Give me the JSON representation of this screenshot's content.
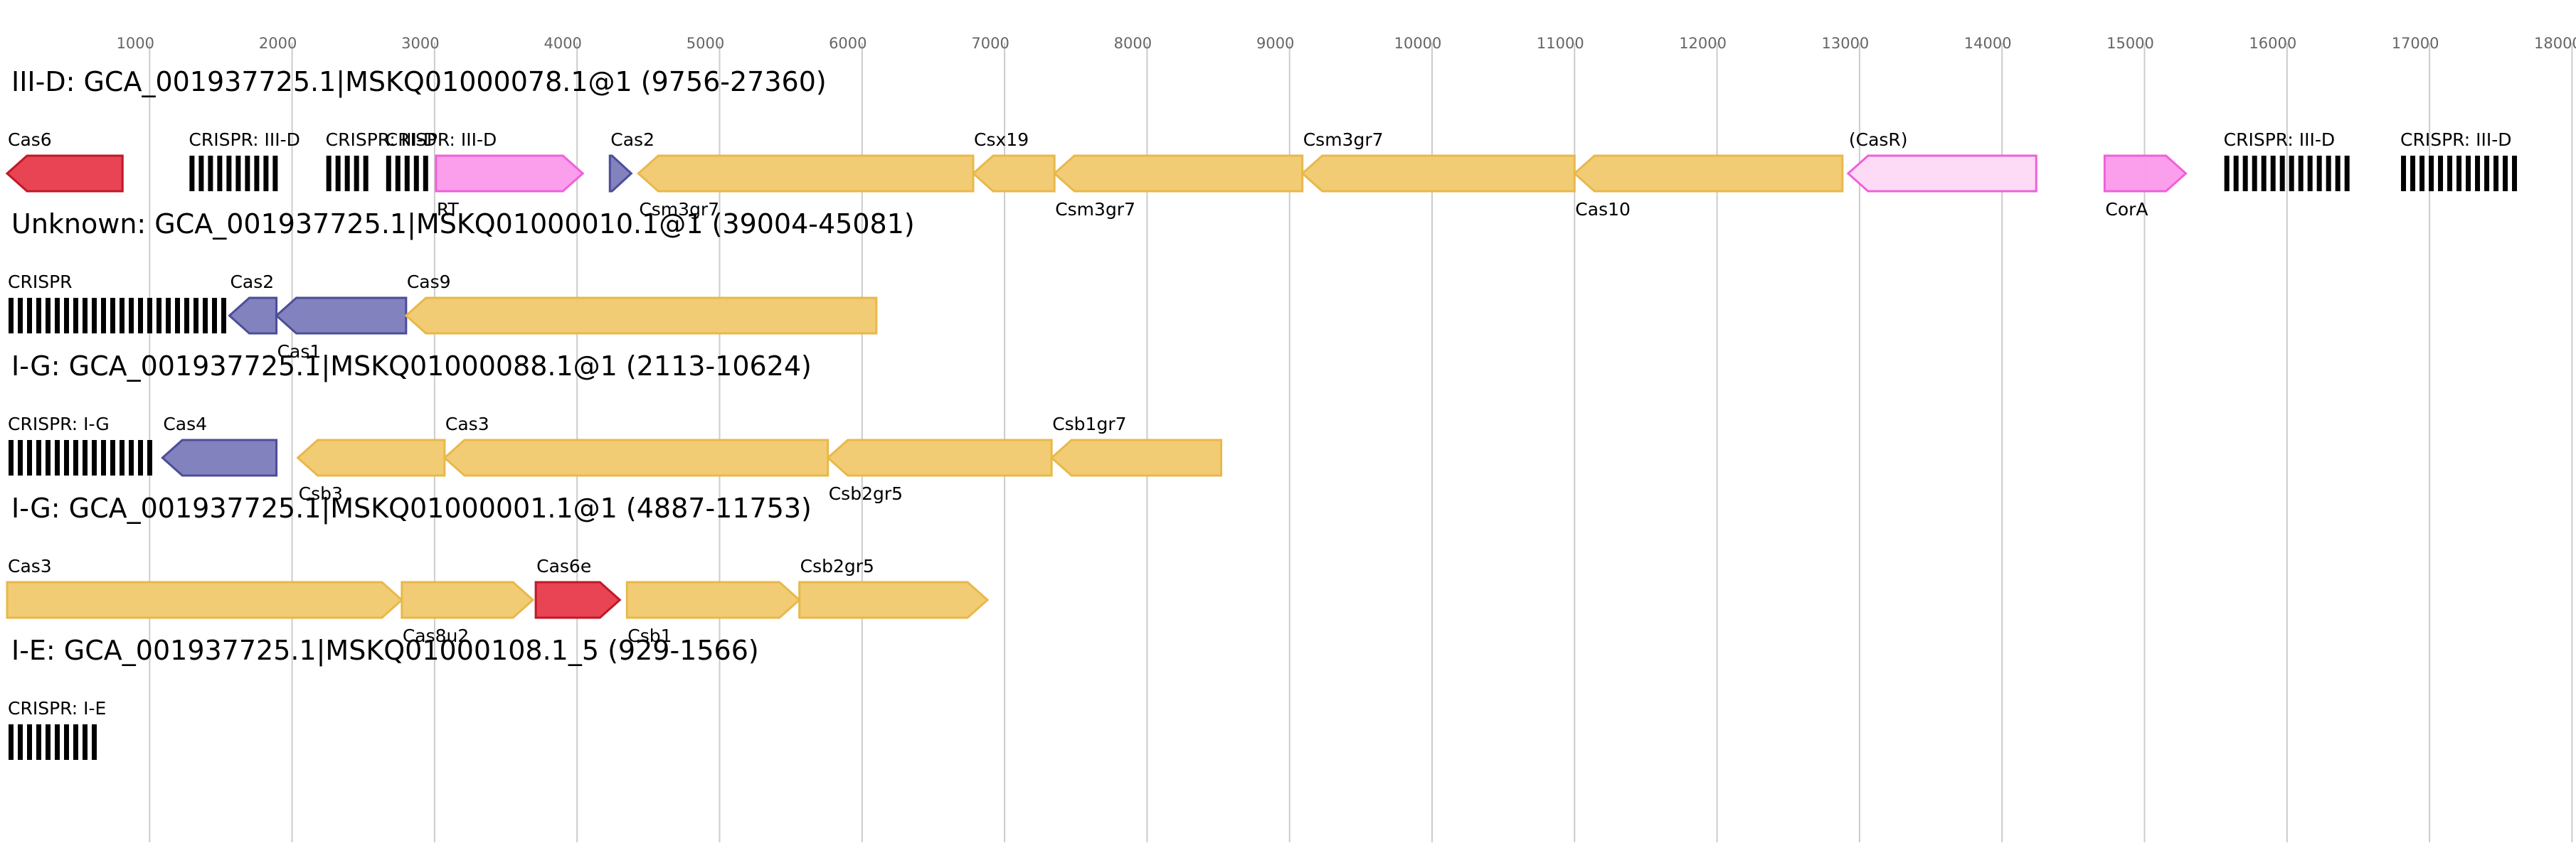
{
  "axis": {
    "ticks": [
      "1000",
      "2000",
      "3000",
      "4000",
      "5000",
      "6000",
      "7000",
      "8000",
      "9000",
      "10000",
      "11000",
      "12000",
      "13000",
      "14000",
      "15000",
      "16000",
      "17000",
      "18000"
    ]
  },
  "colors": {
    "cas_effector": "#f2cb71",
    "cas_effector_stroke": "#e8b84a",
    "cas6": "#e84050",
    "cas6_stroke": "#c01828",
    "adaptation": "#7f7fbd",
    "adaptation_stroke": "#4d4d99",
    "accessory": "#fb9cec",
    "accessory_stroke": "#f060d8",
    "accessory_faint": "#fddaf6",
    "crispr": "#000000"
  },
  "tracks": [
    {
      "title": "III-D: GCA_001937725.1|MSKQ01000078.1@1 (9756-27360)",
      "features": [
        {
          "label": "Cas6",
          "label_pos": "above",
          "kind": "arrow",
          "dir": "left",
          "start": 0,
          "end": 810,
          "color": "cas6"
        },
        {
          "label": "CRISPR: III-D",
          "label_pos": "above",
          "kind": "crispr",
          "start": 1270,
          "end": 1900
        },
        {
          "label": "CRISPR: III-D",
          "label_pos": "above",
          "kind": "crispr",
          "start": 2230,
          "end": 2560
        },
        {
          "label": "CRISPR: III-D",
          "label_pos": "above",
          "kind": "crispr",
          "start": 2650,
          "end": 2980
        },
        {
          "label": "RT",
          "label_pos": "below",
          "kind": "arrow",
          "dir": "right",
          "start": 3010,
          "end": 4040,
          "color": "accessory"
        },
        {
          "label": "Cas2",
          "label_pos": "above",
          "kind": "arrow",
          "dir": "right",
          "start": 4230,
          "end": 4380,
          "color": "adaptation"
        },
        {
          "label": "Csm3gr7",
          "label_pos": "below",
          "kind": "arrow",
          "dir": "left",
          "start": 4430,
          "end": 6780,
          "color": "cas_effector"
        },
        {
          "label": "Csx19",
          "label_pos": "above",
          "kind": "arrow",
          "dir": "left",
          "start": 6780,
          "end": 7350,
          "color": "cas_effector"
        },
        {
          "label": "Csm3gr7",
          "label_pos": "below",
          "kind": "arrow",
          "dir": "left",
          "start": 7350,
          "end": 9090,
          "color": "cas_effector"
        },
        {
          "label": "Csm3gr7",
          "label_pos": "above",
          "kind": "arrow",
          "dir": "left",
          "start": 9090,
          "end": 11000,
          "color": "cas_effector"
        },
        {
          "label": "Cas10",
          "label_pos": "below",
          "kind": "arrow",
          "dir": "left",
          "start": 11000,
          "end": 12880,
          "color": "cas_effector"
        },
        {
          "label": "(CasR)",
          "label_pos": "above",
          "kind": "arrow",
          "dir": "left",
          "start": 12920,
          "end": 14240,
          "color": "accessory_faint"
        },
        {
          "label": "CorA",
          "label_pos": "below",
          "kind": "arrow",
          "dir": "right",
          "start": 14720,
          "end": 15290,
          "color": "accessory"
        },
        {
          "label": "CRISPR: III-D",
          "label_pos": "above",
          "kind": "crispr",
          "start": 15550,
          "end": 16460
        },
        {
          "label": "CRISPR: III-D",
          "label_pos": "above",
          "kind": "crispr",
          "start": 16790,
          "end": 17640
        }
      ]
    },
    {
      "title": "Unknown: GCA_001937725.1|MSKQ01000010.1@1 (39004-45081)",
      "features": [
        {
          "label": "CRISPR",
          "label_pos": "above",
          "kind": "crispr",
          "start": 0,
          "end": 1520
        },
        {
          "label": "Cas2",
          "label_pos": "above",
          "kind": "arrow",
          "dir": "left",
          "start": 1560,
          "end": 1890,
          "color": "adaptation"
        },
        {
          "label": "Cas1",
          "label_pos": "below",
          "kind": "arrow",
          "dir": "left",
          "start": 1890,
          "end": 2800,
          "color": "adaptation"
        },
        {
          "label": "Cas9",
          "label_pos": "above",
          "kind": "arrow",
          "dir": "left",
          "start": 2800,
          "end": 6100,
          "color": "cas_effector"
        }
      ]
    },
    {
      "title": "I-G: GCA_001937725.1|MSKQ01000088.1@1 (2113-10624)",
      "features": [
        {
          "label": "CRISPR: I-G",
          "label_pos": "above",
          "kind": "crispr",
          "start": 0,
          "end": 1000
        },
        {
          "label": "Cas4",
          "label_pos": "above",
          "kind": "arrow",
          "dir": "left",
          "start": 1090,
          "end": 1890,
          "color": "adaptation"
        },
        {
          "label": "Csb3",
          "label_pos": "below",
          "kind": "arrow",
          "dir": "left",
          "start": 2040,
          "end": 3070,
          "color": "cas_effector"
        },
        {
          "label": "Cas3",
          "label_pos": "above",
          "kind": "arrow",
          "dir": "left",
          "start": 3070,
          "end": 5760,
          "color": "cas_effector"
        },
        {
          "label": "Csb2gr5",
          "label_pos": "below",
          "kind": "arrow",
          "dir": "left",
          "start": 5760,
          "end": 7330,
          "color": "cas_effector"
        },
        {
          "label": "Csb1gr7",
          "label_pos": "above",
          "kind": "arrow",
          "dir": "left",
          "start": 7330,
          "end": 8520,
          "color": "cas_effector"
        }
      ]
    },
    {
      "title": "I-G: GCA_001937725.1|MSKQ01000001.1@1 (4887-11753)",
      "features": [
        {
          "label": "Cas3",
          "label_pos": "above",
          "kind": "arrow",
          "dir": "right",
          "start": 0,
          "end": 2770,
          "color": "cas_effector"
        },
        {
          "label": "Cas8u2",
          "label_pos": "below",
          "kind": "arrow",
          "dir": "right",
          "start": 2770,
          "end": 3690,
          "color": "cas_effector"
        },
        {
          "label": "Cas6e",
          "label_pos": "above",
          "kind": "arrow",
          "dir": "right",
          "start": 3710,
          "end": 4300,
          "color": "cas6"
        },
        {
          "label": "Csb1",
          "label_pos": "below",
          "kind": "arrow",
          "dir": "right",
          "start": 4350,
          "end": 5560,
          "color": "cas_effector"
        },
        {
          "label": "Csb2gr5",
          "label_pos": "above",
          "kind": "arrow",
          "dir": "right",
          "start": 5560,
          "end": 6880,
          "color": "cas_effector"
        }
      ]
    },
    {
      "title": "I-E: GCA_001937725.1|MSKQ01000108.1_5 (929-1566)",
      "features": [
        {
          "label": "CRISPR: I-E",
          "label_pos": "above",
          "kind": "crispr",
          "start": 0,
          "end": 640
        }
      ]
    }
  ]
}
